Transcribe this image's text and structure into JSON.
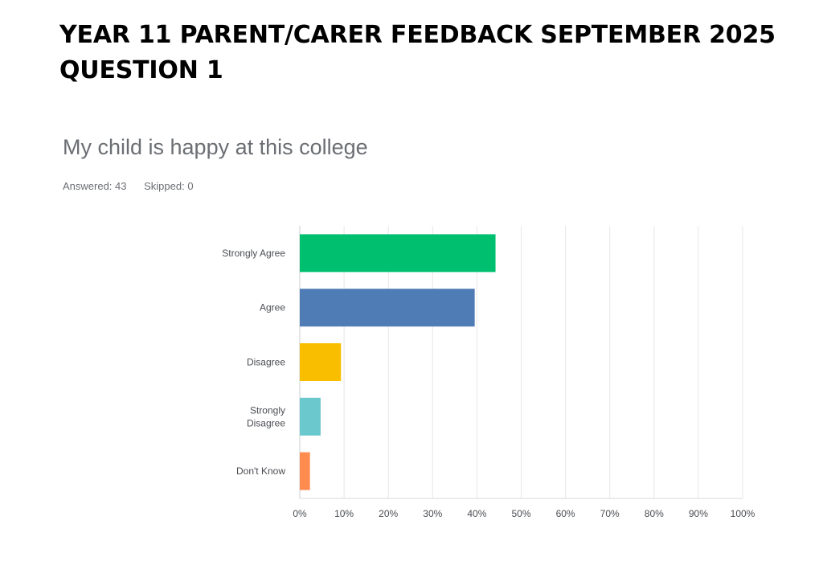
{
  "page": {
    "title_line1": "YEAR 11 PARENT/CARER FEEDBACK SEPTEMBER 2025",
    "title_line2": "QUESTION 1"
  },
  "question": {
    "title": "My child is happy at this college",
    "answered": "Answered: 43",
    "skipped": "Skipped: 0"
  },
  "chart_data": {
    "type": "bar",
    "orientation": "horizontal",
    "title": "My child is happy at this college",
    "categories": [
      [
        "Strongly Agree"
      ],
      [
        "Agree"
      ],
      [
        "Disagree"
      ],
      [
        "Strongly",
        "Disagree"
      ],
      [
        "Don't Know"
      ]
    ],
    "values": [
      44.2,
      39.5,
      9.3,
      4.7,
      2.3
    ],
    "colors": [
      "#00bf6f",
      "#507cb6",
      "#f9be00",
      "#6bc8cd",
      "#ff8b4f"
    ],
    "xlim": [
      0,
      100
    ],
    "xticks": [
      "0%",
      "10%",
      "20%",
      "30%",
      "40%",
      "50%",
      "60%",
      "70%",
      "80%",
      "90%",
      "100%"
    ],
    "grid": "vertical"
  }
}
